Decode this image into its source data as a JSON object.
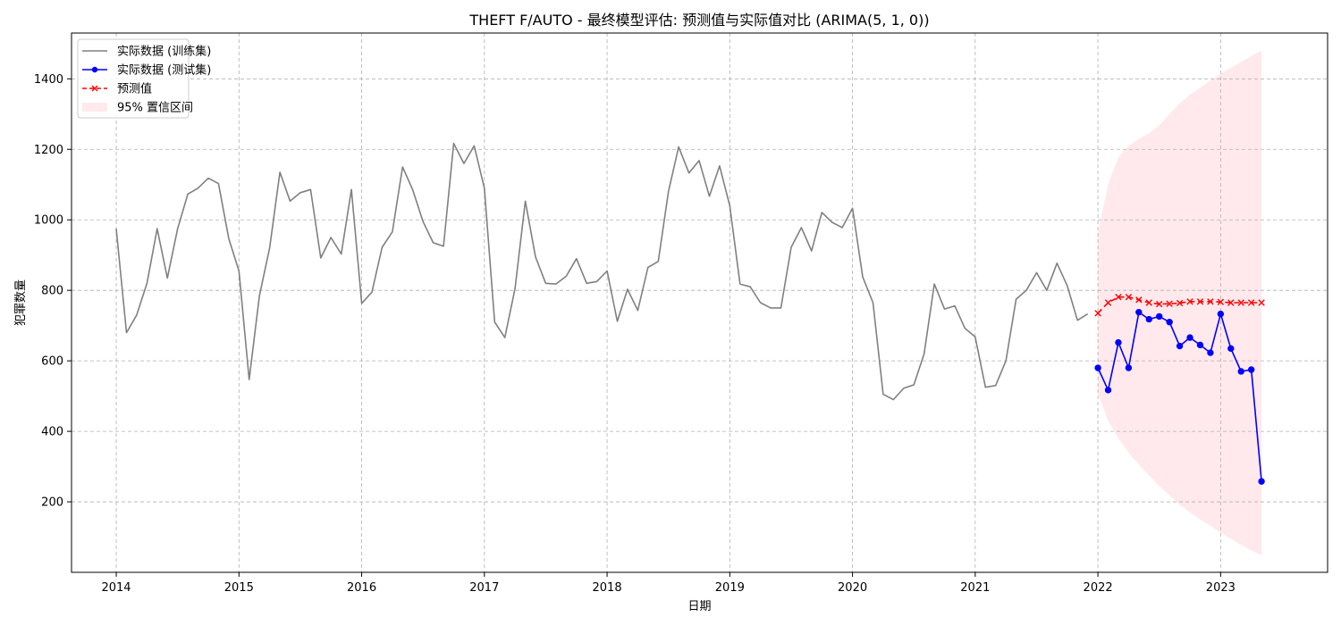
{
  "chart_data": {
    "type": "line",
    "title": "THEFT F/AUTO - 最终模型评估: 预测值与实际值对比 (ARIMA(5, 1, 0))",
    "xlabel": "日期",
    "ylabel": "犯罪数量",
    "xlim": [
      "2013-08-20",
      "2023-11-15"
    ],
    "ylim": [
      0,
      1530
    ],
    "x_ticks": [
      "2014",
      "2015",
      "2016",
      "2017",
      "2018",
      "2019",
      "2020",
      "2021",
      "2022",
      "2023"
    ],
    "y_ticks": [
      200,
      400,
      600,
      800,
      1000,
      1200,
      1400
    ],
    "grid": true,
    "legend_position": "top-left",
    "series": [
      {
        "name": "实际数据 (训练集)",
        "color": "#808080",
        "marker": "none",
        "x": [
          "2014-01",
          "2014-02",
          "2014-03",
          "2014-04",
          "2014-05",
          "2014-06",
          "2014-07",
          "2014-08",
          "2014-09",
          "2014-10",
          "2014-11",
          "2014-12",
          "2015-01",
          "2015-02",
          "2015-03",
          "2015-04",
          "2015-05",
          "2015-06",
          "2015-07",
          "2015-08",
          "2015-09",
          "2015-10",
          "2015-11",
          "2015-12",
          "2016-01",
          "2016-02",
          "2016-03",
          "2016-04",
          "2016-05",
          "2016-06",
          "2016-07",
          "2016-08",
          "2016-09",
          "2016-10",
          "2016-11",
          "2016-12",
          "2017-01",
          "2017-02",
          "2017-03",
          "2017-04",
          "2017-05",
          "2017-06",
          "2017-07",
          "2017-08",
          "2017-09",
          "2017-10",
          "2017-11",
          "2017-12",
          "2018-01",
          "2018-02",
          "2018-03",
          "2018-04",
          "2018-05",
          "2018-06",
          "2018-07",
          "2018-08",
          "2018-09",
          "2018-10",
          "2018-11",
          "2018-12",
          "2019-01",
          "2019-02",
          "2019-03",
          "2019-04",
          "2019-05",
          "2019-06",
          "2019-07",
          "2019-08",
          "2019-09",
          "2019-10",
          "2019-11",
          "2019-12",
          "2020-01",
          "2020-02",
          "2020-03",
          "2020-04",
          "2020-05",
          "2020-06",
          "2020-07",
          "2020-08",
          "2020-09",
          "2020-10",
          "2020-11",
          "2020-12",
          "2021-01",
          "2021-02",
          "2021-03",
          "2021-04",
          "2021-05",
          "2021-06",
          "2021-07",
          "2021-08",
          "2021-09",
          "2021-10",
          "2021-11",
          "2021-12"
        ],
        "y": [
          975,
          680,
          730,
          820,
          975,
          835,
          975,
          1073,
          1090,
          1118,
          1103,
          947,
          855,
          547,
          785,
          920,
          1135,
          1053,
          1077,
          1086,
          892,
          950,
          903,
          1086,
          763,
          795,
          922,
          966,
          1150,
          1085,
          995,
          935,
          925,
          1217,
          1160,
          1210,
          1090,
          710,
          666,
          805,
          1053,
          895,
          820,
          818,
          840,
          890,
          820,
          825,
          855,
          712,
          803,
          743,
          865,
          882,
          1080,
          1207,
          1133,
          1168,
          1067,
          1153,
          1040,
          818,
          810,
          765,
          750,
          750,
          922,
          978,
          912,
          1021,
          993,
          978,
          1033,
          838,
          765,
          505,
          490,
          522,
          532,
          620,
          818,
          747,
          756,
          692,
          668,
          525,
          530,
          600,
          775,
          800,
          850,
          800,
          877,
          813,
          715,
          733
        ]
      },
      {
        "name": "实际数据 (测试集)",
        "color": "#0000ff",
        "marker": "circle",
        "x": [
          "2022-01",
          "2022-02",
          "2022-03",
          "2022-04",
          "2022-05",
          "2022-06",
          "2022-07",
          "2022-08",
          "2022-09",
          "2022-10",
          "2022-11",
          "2022-12",
          "2023-01",
          "2023-02",
          "2023-03",
          "2023-04",
          "2023-05"
        ],
        "y": [
          580,
          517,
          652,
          580,
          738,
          718,
          726,
          710,
          642,
          666,
          645,
          623,
          733,
          635,
          570,
          575,
          258
        ]
      },
      {
        "name": "预测值",
        "color": "#ff0000",
        "marker": "x",
        "dashed": true,
        "x": [
          "2022-01",
          "2022-02",
          "2022-03",
          "2022-04",
          "2022-05",
          "2022-06",
          "2022-07",
          "2022-08",
          "2022-09",
          "2022-10",
          "2022-11",
          "2022-12",
          "2023-01",
          "2023-02",
          "2023-03",
          "2023-04",
          "2023-05"
        ],
        "y": [
          735,
          765,
          781,
          781,
          773,
          765,
          761,
          762,
          764,
          768,
          768,
          768,
          767,
          765,
          765,
          765,
          765
        ]
      }
    ],
    "confidence_band": {
      "name": "95% 置信区间",
      "color": "#ffc0cb",
      "x": [
        "2022-01",
        "2022-02",
        "2022-03",
        "2022-04",
        "2022-05",
        "2022-06",
        "2022-07",
        "2022-08",
        "2022-09",
        "2022-10",
        "2022-11",
        "2022-12",
        "2023-01",
        "2023-02",
        "2023-03",
        "2023-04",
        "2023-05"
      ],
      "lower": [
        507,
        430,
        380,
        340,
        305,
        275,
        245,
        218,
        192,
        170,
        150,
        132,
        112,
        95,
        78,
        62,
        48
      ],
      "upper": [
        963,
        1100,
        1178,
        1210,
        1230,
        1245,
        1268,
        1300,
        1330,
        1355,
        1375,
        1395,
        1415,
        1432,
        1448,
        1465,
        1480
      ]
    }
  }
}
